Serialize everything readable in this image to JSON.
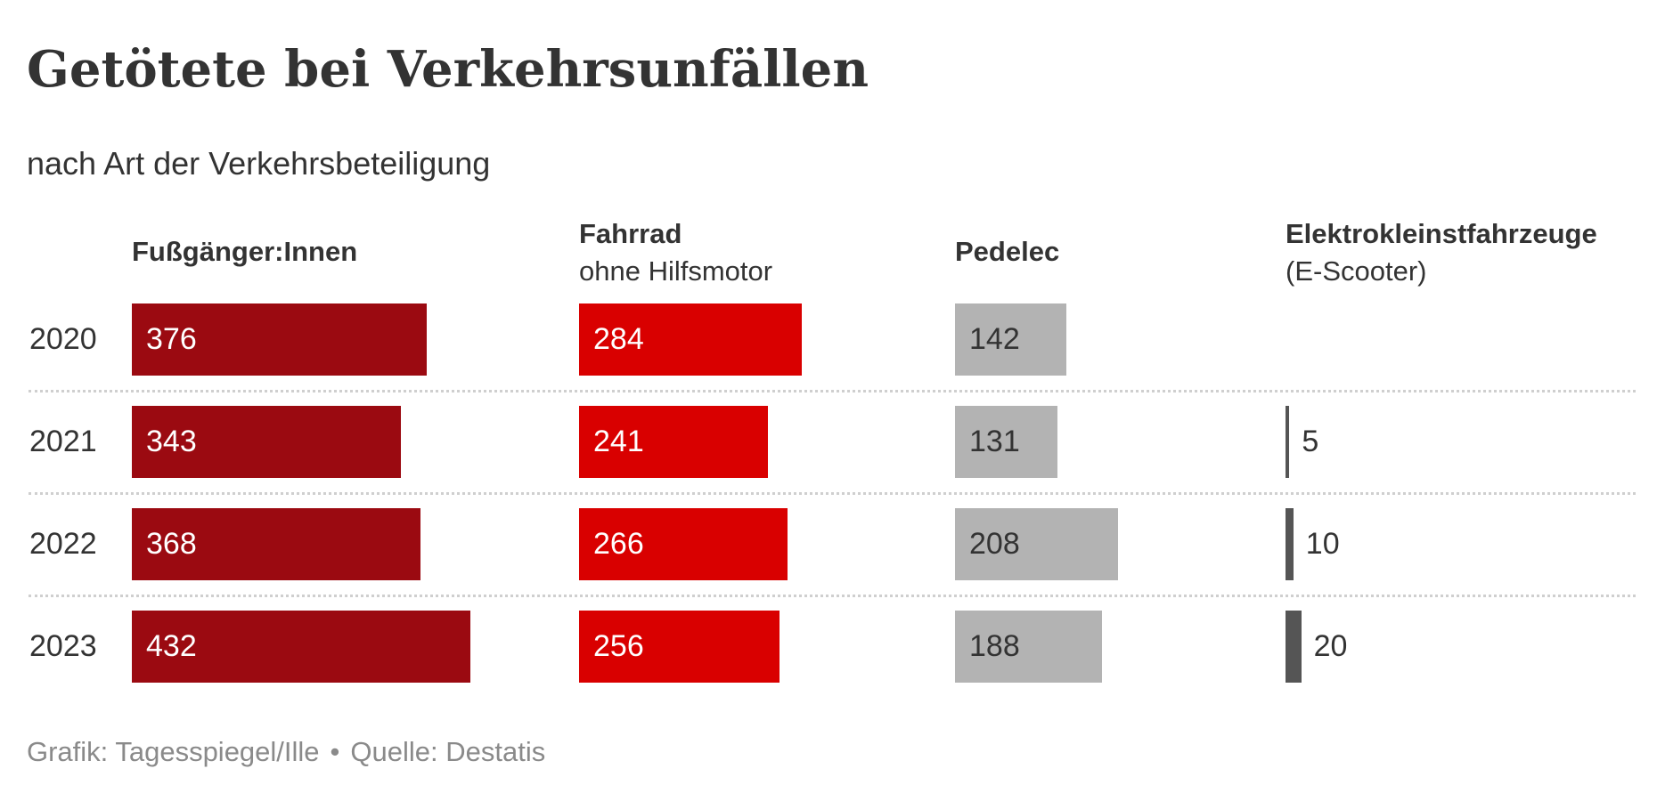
{
  "title": "Getötete bei Verkehrsunfällen",
  "subtitle": "nach Art der Verkehrsbeteiligung",
  "footer": {
    "credit": "Grafik: Tagesspiegel/Ille",
    "separator": "•",
    "source": "Quelle: Destatis"
  },
  "colors": {
    "fussgaenger": "#9b0a11",
    "fahrrad": "#d90000",
    "pedelec": "#b3b3b3",
    "escooter": "#555555",
    "label_light": "#ffffff",
    "label_dark": "#333333"
  },
  "chart_data": {
    "type": "bar",
    "orientation": "horizontal",
    "layout": "small-multiples",
    "title": "Getötete bei Verkehrsunfällen",
    "subtitle": "nach Art der Verkehrsbeteiligung",
    "categories": [
      "2020",
      "2021",
      "2022",
      "2023"
    ],
    "grid": false,
    "series": [
      {
        "key": "fussgaenger",
        "name": "Fußgänger:Innen",
        "subname": "",
        "values": [
          376,
          343,
          368,
          432
        ]
      },
      {
        "key": "fahrrad",
        "name": "Fahrrad",
        "subname": "ohne Hilfsmotor",
        "values": [
          284,
          241,
          266,
          256
        ]
      },
      {
        "key": "pedelec",
        "name": "Pedelec",
        "subname": "",
        "values": [
          142,
          131,
          208,
          188
        ]
      },
      {
        "key": "escooter",
        "name": "Elektrokleinstfahrzeuge",
        "subname": "(E-Scooter)",
        "values": [
          null,
          5,
          10,
          20
        ]
      }
    ]
  }
}
